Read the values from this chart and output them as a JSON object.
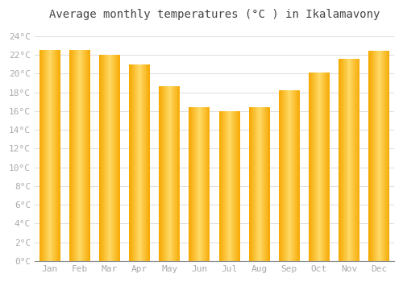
{
  "title": "Average monthly temperatures (°C ) in Ikalamavony",
  "months": [
    "Jan",
    "Feb",
    "Mar",
    "Apr",
    "May",
    "Jun",
    "Jul",
    "Aug",
    "Sep",
    "Oct",
    "Nov",
    "Dec"
  ],
  "values": [
    22.5,
    22.5,
    22.0,
    21.0,
    18.7,
    16.4,
    16.0,
    16.4,
    18.2,
    20.1,
    21.6,
    22.4
  ],
  "bar_color_center": "#FFD966",
  "bar_color_edge": "#F5A800",
  "background_color": "#FFFFFF",
  "grid_color": "#E0E0E0",
  "ylim": [
    0,
    25
  ],
  "yticks": [
    0,
    2,
    4,
    6,
    8,
    10,
    12,
    14,
    16,
    18,
    20,
    22,
    24
  ],
  "ytick_labels": [
    "0°C",
    "2°C",
    "4°C",
    "6°C",
    "8°C",
    "10°C",
    "12°C",
    "14°C",
    "16°C",
    "18°C",
    "20°C",
    "22°C",
    "24°C"
  ],
  "title_fontsize": 10,
  "tick_fontsize": 8,
  "tick_color": "#AAAAAA",
  "title_color": "#444444",
  "bar_width": 0.7,
  "n_grad": 40
}
